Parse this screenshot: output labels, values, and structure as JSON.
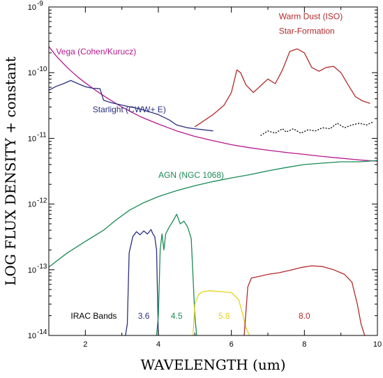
{
  "chart_data": {
    "type": "line",
    "xlabel": "WAVELENGTH (um)",
    "ylabel": "LOG FLUX DENSITY + constant",
    "xlim": [
      1,
      10
    ],
    "ylim": [
      1e-14,
      1e-09
    ],
    "y_scale": "log",
    "x_ticks": [
      2,
      4,
      6,
      8,
      10
    ],
    "y_ticks": [
      {
        "base": "10",
        "exp": "-14",
        "value": 1e-14
      },
      {
        "base": "10",
        "exp": "-13",
        "value": 1e-13
      },
      {
        "base": "10",
        "exp": "-12",
        "value": 1e-12
      },
      {
        "base": "10",
        "exp": "-11",
        "value": 1e-11
      },
      {
        "base": "10",
        "exp": "-10",
        "value": 1e-10
      },
      {
        "base": "10",
        "exp": "-9",
        "value": 1e-09
      }
    ],
    "series": [
      {
        "name": "Vega (Cohen/Kurucz)",
        "color": "#b5178f",
        "x": [
          1.0,
          1.2,
          1.5,
          1.8,
          2.0,
          2.3,
          2.6,
          3.0,
          3.5,
          4.0,
          4.5,
          5.0,
          5.5,
          6.0,
          6.5,
          7.0,
          7.5,
          8.0,
          8.5,
          9.0,
          9.5,
          10.0
        ],
        "y": [
          2.5e-10,
          1.8e-10,
          1.2e-10,
          8.5e-11,
          7e-11,
          5.3e-11,
          4.1e-11,
          3e-11,
          2.15e-11,
          1.65e-11,
          1.3e-11,
          1.07e-11,
          9.2e-12,
          8e-12,
          7.2e-12,
          6.6e-12,
          6.1e-12,
          5.7e-12,
          5.3e-12,
          5e-12,
          4.7e-12,
          4.5e-12
        ]
      },
      {
        "name": "Starlight (CWW+ E)",
        "color": "#2b2f7f",
        "x": [
          1.0,
          1.2,
          1.4,
          1.6,
          1.8,
          2.0,
          2.2,
          2.4,
          2.5,
          2.7,
          3.0,
          3.5,
          4.0,
          4.3,
          4.5,
          4.8,
          5.0,
          5.5
        ],
        "y": [
          5.4e-11,
          6.2e-11,
          6.8e-11,
          7.6e-11,
          6.8e-11,
          6.1e-11,
          5.8e-11,
          5.7e-11,
          3.8e-11,
          3.5e-11,
          3.2e-11,
          2.8e-11,
          2.3e-11,
          1.9e-11,
          1.6e-11,
          1.45e-11,
          1.4e-11,
          1.3e-11
        ]
      },
      {
        "name": "Starlight extrapolation",
        "color": "#000000",
        "dashed": true,
        "x": [
          6.8,
          7.0,
          7.2,
          7.4,
          7.5,
          7.7,
          7.9,
          8.1,
          8.3,
          8.5,
          8.7,
          8.9,
          9.1,
          9.3,
          9.5,
          9.7,
          9.9
        ],
        "y": [
          1.1e-11,
          1.3e-11,
          1.2e-11,
          1.4e-11,
          1.25e-11,
          1.4e-11,
          1.2e-11,
          1.35e-11,
          1.3e-11,
          1.45e-11,
          1.4e-11,
          1.7e-11,
          1.45e-11,
          1.6e-11,
          1.7e-11,
          1.6e-11,
          1.8e-11
        ]
      },
      {
        "name": "Warm Dust (ISO) Star-Formation",
        "color": "#b22a2a",
        "x": [
          5.0,
          5.5,
          5.8,
          6.0,
          6.15,
          6.25,
          6.4,
          6.6,
          6.8,
          7.0,
          7.2,
          7.4,
          7.6,
          7.8,
          8.0,
          8.2,
          8.4,
          8.6,
          8.8,
          9.0,
          9.2,
          9.4,
          9.6,
          9.8
        ],
        "y": [
          1.5e-11,
          2.3e-11,
          3.2e-11,
          5e-11,
          1.1e-10,
          1e-10,
          6.5e-11,
          5e-11,
          6.3e-11,
          8e-11,
          6.8e-11,
          1.1e-10,
          2.1e-10,
          2.3e-10,
          2e-10,
          1.2e-10,
          1.05e-10,
          1.2e-10,
          1.25e-10,
          1e-10,
          6.5e-11,
          4.3e-11,
          3.7e-11,
          3.4e-11
        ]
      },
      {
        "name": "AGN (NGC 1068)",
        "color": "#1a8a55",
        "x": [
          1.0,
          1.5,
          2.0,
          2.5,
          2.8,
          3.2,
          3.6,
          4.0,
          4.5,
          5.0,
          5.5,
          6.0,
          6.5,
          7.0,
          7.5,
          8.0,
          8.5,
          9.0,
          9.5,
          10.0
        ],
        "y": [
          1.1e-13,
          1.8e-13,
          2.7e-13,
          4e-13,
          5.5e-13,
          8e-13,
          1.05e-12,
          1.3e-12,
          1.6e-12,
          1.9e-12,
          2.2e-12,
          2.5e-12,
          2.8e-12,
          3.2e-12,
          3.6e-12,
          4e-12,
          4.2e-12,
          4.4e-12,
          4.4e-12,
          4.6e-12
        ]
      },
      {
        "name": "IRAC 3.6",
        "color": "#2b2f7f",
        "x": [
          3.1,
          3.15,
          3.2,
          3.3,
          3.4,
          3.5,
          3.6,
          3.7,
          3.8,
          3.85,
          3.9,
          3.95,
          4.0
        ],
        "y": [
          1e-14,
          1.5e-14,
          1.8e-13,
          3.2e-13,
          3.8e-13,
          3.4e-13,
          3.9e-13,
          3.5e-13,
          4.1e-13,
          3.5e-13,
          3.2e-13,
          2e-13,
          1e-14
        ]
      },
      {
        "name": "IRAC 4.5",
        "color": "#1a8a55",
        "x": [
          3.95,
          4.0,
          4.05,
          4.1,
          4.15,
          4.2,
          4.3,
          4.4,
          4.5,
          4.6,
          4.7,
          4.8,
          4.9,
          5.0,
          5.05
        ],
        "y": [
          1e-14,
          2e-14,
          2e-13,
          3.5e-13,
          2e-13,
          3.5e-13,
          4.5e-13,
          5.5e-13,
          7e-13,
          5e-13,
          5.5e-13,
          4.5e-13,
          3e-13,
          2e-14,
          1e-14
        ]
      },
      {
        "name": "IRAC 5.8",
        "color": "#e5d21c",
        "x": [
          4.95,
          5.0,
          5.1,
          5.2,
          5.4,
          5.6,
          5.8,
          6.0,
          6.2,
          6.3,
          6.4,
          6.5
        ],
        "y": [
          1e-14,
          3e-14,
          4.2e-14,
          4.6e-14,
          4.8e-14,
          4.7e-14,
          4.6e-14,
          4.5e-14,
          3.5e-14,
          2.2e-14,
          1.3e-14,
          1e-14
        ]
      },
      {
        "name": "IRAC 8.0",
        "color": "#b22a2a",
        "x": [
          6.35,
          6.45,
          6.55,
          6.8,
          7.0,
          7.3,
          7.6,
          7.9,
          8.2,
          8.5,
          8.8,
          9.1,
          9.3,
          9.45,
          9.55,
          9.65
        ],
        "y": [
          1e-14,
          5.5e-14,
          7.5e-14,
          8e-14,
          8.5e-14,
          9e-14,
          9.8e-14,
          1.08e-13,
          1.15e-13,
          1.12e-13,
          1e-13,
          8.5e-14,
          6.5e-14,
          3e-14,
          1.5e-14,
          1e-14
        ]
      }
    ],
    "annotations": [
      {
        "text": "Vega (Cohen/Kurucz)",
        "color": "#b5178f",
        "x": 1.2,
        "y": 1.9e-10,
        "anchor": "start"
      },
      {
        "text": "Starlight (CWW+ E)",
        "color": "#2b2f7f",
        "x": 2.2,
        "y": 2.5e-11,
        "anchor": "start"
      },
      {
        "text": "Warm Dust (ISO)",
        "color": "#b22a2a",
        "x": 7.3,
        "y": 6.5e-10,
        "anchor": "start"
      },
      {
        "text": "Star-Formation",
        "color": "#b22a2a",
        "x": 7.3,
        "y": 3.9e-10,
        "anchor": "start"
      },
      {
        "text": "AGN (NGC 1068)",
        "color": "#1a8a55",
        "x": 4.0,
        "y": 2.5e-12,
        "anchor": "start"
      },
      {
        "text": "IRAC Bands",
        "color": "#000000",
        "x": 1.6,
        "y": 1.8e-14,
        "anchor": "start"
      },
      {
        "text": "3.6",
        "color": "#2b2f7f",
        "x": 3.6,
        "y": 1.8e-14,
        "anchor": "middle"
      },
      {
        "text": "4.5",
        "color": "#1a8a55",
        "x": 4.5,
        "y": 1.8e-14,
        "anchor": "middle"
      },
      {
        "text": "5.8",
        "color": "#e5d21c",
        "x": 5.8,
        "y": 1.8e-14,
        "anchor": "middle"
      },
      {
        "text": "8.0",
        "color": "#b22a2a",
        "x": 8.0,
        "y": 1.8e-14,
        "anchor": "middle"
      }
    ]
  }
}
